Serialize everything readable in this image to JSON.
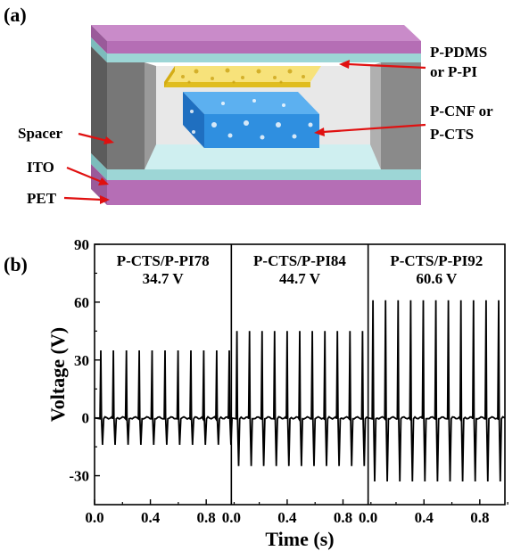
{
  "figure": {
    "panel_a_label": "(a)",
    "panel_b_label": "(b)"
  },
  "diagram": {
    "labels": {
      "pdms": "P-PDMS",
      "pdms_or": "or P-PI",
      "cnf": "P-CNF or",
      "cnf_or": "P-CTS",
      "spacer": "Spacer",
      "ito": "ITO",
      "pet": "PET"
    },
    "colors": {
      "pet": "#b56eb5",
      "ito": "#9dd6d6",
      "spacer": "#808080",
      "foam_top": "#f2d43a",
      "foam_bottom": "#2f8fe0",
      "arrow": "#e01010"
    }
  },
  "chart_data": {
    "type": "line",
    "ylabel": "Voltage (V)",
    "xlabel": "Time (s)",
    "ylim": [
      -45,
      90
    ],
    "yticks": [
      -30,
      0,
      30,
      60,
      90
    ],
    "xlim": [
      0,
      0.98
    ],
    "xticks": [
      0.0,
      0.4,
      0.8
    ],
    "xtick_labels": [
      "0.0",
      "0.4",
      "0.8"
    ],
    "ytick_labels": [
      "-30",
      "0",
      "30",
      "60",
      "90"
    ],
    "series": [
      {
        "name": "P-CTS/P-PI78",
        "annotation": "34.7 V",
        "pulse_times": [
          0.045,
          0.135,
          0.228,
          0.32,
          0.412,
          0.505,
          0.598,
          0.69,
          0.782,
          0.875,
          0.965
        ],
        "peak": 35,
        "trough": -14
      },
      {
        "name": "P-CTS/P-PI84",
        "annotation": "44.7 V",
        "pulse_times": [
          0.04,
          0.13,
          0.22,
          0.31,
          0.4,
          0.49,
          0.58,
          0.67,
          0.76,
          0.85,
          0.94
        ],
        "peak": 45,
        "trough": -25
      },
      {
        "name": "P-CTS/P-PI92",
        "annotation": "60.6 V",
        "pulse_times": [
          0.035,
          0.125,
          0.215,
          0.305,
          0.395,
          0.485,
          0.575,
          0.665,
          0.755,
          0.845,
          0.935
        ],
        "peak": 61,
        "trough": -33
      }
    ],
    "grid": false,
    "colors": {
      "line": "#000000"
    }
  }
}
